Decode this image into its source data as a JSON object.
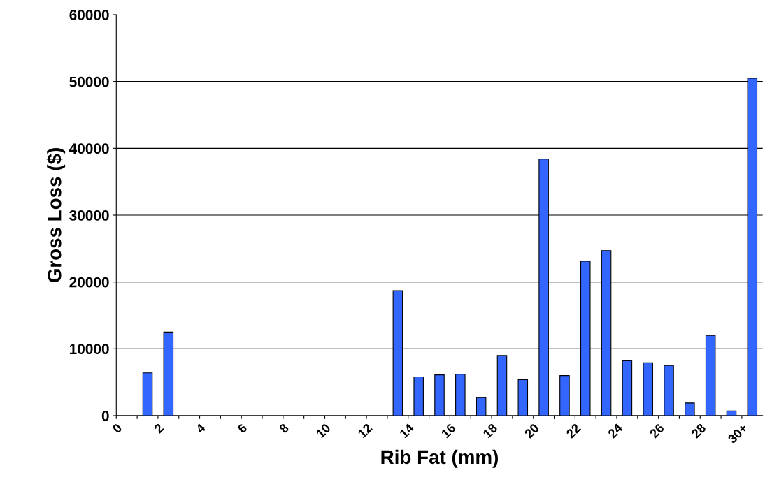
{
  "chart_data": {
    "type": "bar",
    "xlabel": "Rib Fat (mm)",
    "ylabel": "Gross Loss ($)",
    "categories": [
      "0",
      null,
      "2",
      null,
      "4",
      null,
      "6",
      null,
      "8",
      null,
      "10",
      null,
      "12",
      null,
      "14",
      null,
      "16",
      null,
      "18",
      null,
      "20",
      null,
      "22",
      null,
      "24",
      null,
      "26",
      null,
      "28",
      null,
      "30+"
    ],
    "values": [
      null,
      6400,
      12500,
      null,
      null,
      null,
      null,
      null,
      null,
      null,
      null,
      null,
      null,
      18700,
      5800,
      6100,
      6200,
      2700,
      9000,
      5400,
      38400,
      6000,
      23100,
      24700,
      8200,
      7900,
      7500,
      1900,
      12000,
      700,
      50500
    ],
    "color": "#3366ff",
    "ylim": [
      0,
      60000
    ],
    "yticks": [
      0,
      10000,
      20000,
      30000,
      40000,
      50000,
      60000
    ],
    "grid": "y"
  }
}
